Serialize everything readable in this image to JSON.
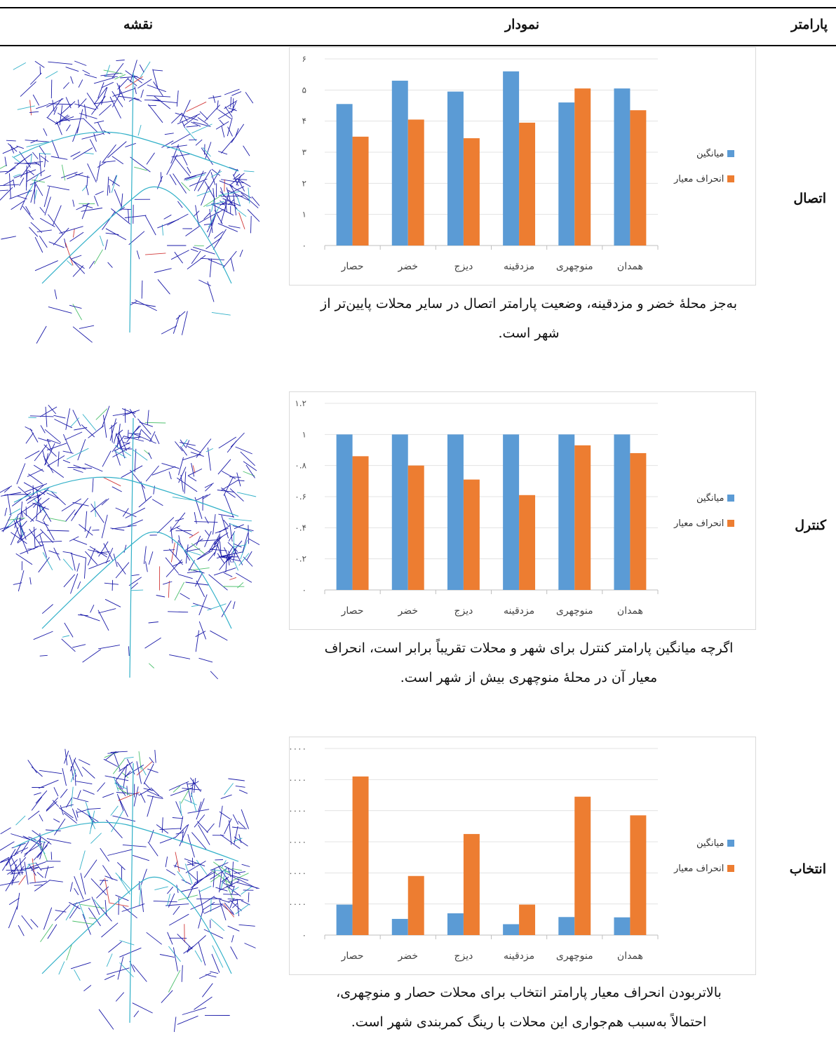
{
  "header": {
    "param": "پارامتر",
    "chart": "نمودار",
    "map": "نقشه"
  },
  "colors": {
    "mean": "#5b9bd5",
    "std": "#ed7d31",
    "map_blue": "#1a1aa8",
    "map_cyan": "#31b0c8",
    "map_green": "#4bbf6b",
    "map_red": "#d23a3a"
  },
  "rows": [
    {
      "param": "اتصال",
      "caption_line1": "به‌جز محلهٔ خضر و مزدقینه، وضعیت پارامتر اتصال در سایر محلات پایین‌تر از",
      "caption_line2": "شهر است.",
      "legend": {
        "mean": "میانگین",
        "std": "انحراف معیار"
      },
      "map_icon": "network-map"
    },
    {
      "param": "کنترل",
      "caption_line1": "اگرچه میانگین پارامتر کنترل برای شهر و محلات تقریباً برابر است، انحراف",
      "caption_line2": "معیار آن در محلهٔ منوچهری بیش از شهر است.",
      "legend": {
        "mean": "میانگین",
        "std": "انحراف معیار"
      },
      "map_icon": "network-map"
    },
    {
      "param": "انتخاب",
      "caption_line1": "بالاتربودن انحراف معیار پارامتر انتخاب برای محلات حصار و منوچهری،",
      "caption_line2": "احتمالاً به‌سبب هم‌جواری این محلات با رینگ کمربندی شهر است.",
      "legend": {
        "mean": "میانگین",
        "std": "انحراف معیار"
      },
      "map_icon": "network-map"
    }
  ],
  "chart_data": [
    {
      "type": "bar",
      "categories": [
        "حصار",
        "خضر",
        "دیزج",
        "مزدقینه",
        "منوچهری",
        "همدان"
      ],
      "series": [
        {
          "name": "میانگین",
          "values": [
            4.55,
            5.3,
            4.95,
            5.6,
            4.6,
            5.05
          ]
        },
        {
          "name": "انحراف معیار",
          "values": [
            3.5,
            4.05,
            3.45,
            3.95,
            5.05,
            4.35
          ]
        }
      ],
      "yticks": [
        "۰",
        "۱",
        "۲",
        "۳",
        "۴",
        "۵",
        "۶"
      ],
      "ylim": [
        0,
        6
      ],
      "grid": true,
      "legend_position": "right"
    },
    {
      "type": "bar",
      "categories": [
        "حصار",
        "خضر",
        "دیزج",
        "مزدقینه",
        "منوچهری",
        "همدان"
      ],
      "series": [
        {
          "name": "میانگین",
          "values": [
            1,
            1,
            1,
            1,
            1,
            1
          ]
        },
        {
          "name": "انحراف معیار",
          "values": [
            0.86,
            0.8,
            0.71,
            0.61,
            0.93,
            0.88
          ]
        }
      ],
      "yticks": [
        "۰",
        "۰.۲",
        "۰.۴",
        "۰.۶",
        "۰.۸",
        "۱",
        "۱.۲"
      ],
      "ylim": [
        0,
        1.2
      ],
      "grid": true,
      "legend_position": "right"
    },
    {
      "type": "bar",
      "categories": [
        "حصار",
        "خضر",
        "دیزج",
        "مزدقینه",
        "منوچهری",
        "همدان"
      ],
      "series": [
        {
          "name": "میانگین",
          "values": [
            98000,
            52000,
            70000,
            35000,
            58000,
            57000
          ]
        },
        {
          "name": "انحراف معیار",
          "values": [
            510000,
            190000,
            325000,
            98000,
            445000,
            385000
          ]
        }
      ],
      "yticks": [
        "۰",
        "۱۰۰۰۰۰",
        "۲۰۰۰۰۰",
        "۳۰۰۰۰۰",
        "۴۰۰۰۰۰",
        "۵۰۰۰۰۰",
        "۶۰۰۰۰۰"
      ],
      "ylim": [
        0,
        600000
      ],
      "grid": true,
      "legend_position": "right"
    }
  ]
}
